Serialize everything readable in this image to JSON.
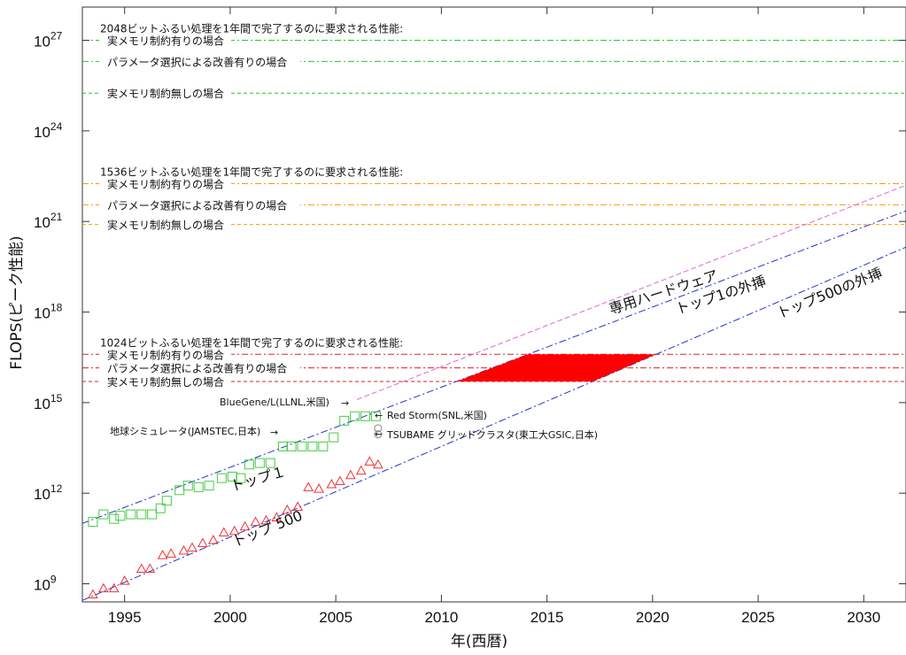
{
  "chart_data": {
    "type": "scatter",
    "xlabel": "年(西暦)",
    "ylabel": "FLOPS(ピーク性能)",
    "xlim": [
      1993,
      2032
    ],
    "ylim_log10": [
      8.4,
      28.1
    ],
    "x_ticks": [
      "1995",
      "2000",
      "2005",
      "2010",
      "2015",
      "2020",
      "2025",
      "2030"
    ],
    "y_ticks": [
      {
        "base": "10",
        "exp": "9"
      },
      {
        "base": "10",
        "exp": "12"
      },
      {
        "base": "10",
        "exp": "15"
      },
      {
        "base": "10",
        "exp": "18"
      },
      {
        "base": "10",
        "exp": "21"
      },
      {
        "base": "10",
        "exp": "24"
      },
      {
        "base": "10",
        "exp": "27"
      }
    ],
    "y_tick_log": [
      9,
      12,
      15,
      18,
      21,
      24,
      27
    ],
    "thresholds": [
      {
        "title": "2048ビットふるい処理を1年間で完了するのに要求される性能:",
        "color": "#22cc22",
        "lines": [
          {
            "label": "実メモリ制約有りの場合",
            "log10": 27.0,
            "dash": "dashdot"
          },
          {
            "label": "パラメータ選択による改善有りの場合",
            "log10": 26.3,
            "dash": "dashdot"
          },
          {
            "label": "実メモリ制約無しの場合",
            "log10": 25.25,
            "dash": "dash"
          }
        ]
      },
      {
        "title": "1536ビットふるい処理を1年間で完了するのに要求される性能:",
        "color": "#ff9900",
        "lines": [
          {
            "label": "実メモリ制約有りの場合",
            "log10": 22.25,
            "dash": "dashdot"
          },
          {
            "label": "パラメータ選択による改善有りの場合",
            "log10": 21.55,
            "dash": "dashdot"
          },
          {
            "label": "実メモリ制約無しの場合",
            "log10": 20.9,
            "dash": "dash"
          }
        ]
      },
      {
        "title": "1024ビットふるい処理を1年間で完了するのに要求される性能:",
        "color": "#dd2222",
        "lines": [
          {
            "label": "実メモリ制約有りの場合",
            "log10": 16.6,
            "dash": "dashdot"
          },
          {
            "label": "パラメータ選択による改善有りの場合",
            "log10": 16.15,
            "dash": "dashdot"
          },
          {
            "label": "実メモリ制約無しの場合",
            "log10": 15.7,
            "dash": "dash"
          }
        ]
      }
    ],
    "top1": {
      "label": "トップ１",
      "color": "#44cc44",
      "points": [
        [
          1993.5,
          11.05
        ],
        [
          1994.0,
          11.3
        ],
        [
          1994.5,
          11.15
        ],
        [
          1994.8,
          11.25
        ],
        [
          1995.3,
          11.3
        ],
        [
          1995.8,
          11.3
        ],
        [
          1996.3,
          11.3
        ],
        [
          1996.7,
          11.5
        ],
        [
          1997.0,
          11.75
        ],
        [
          1997.6,
          12.1
        ],
        [
          1998.0,
          12.25
        ],
        [
          1998.5,
          12.2
        ],
        [
          1999.0,
          12.25
        ],
        [
          1999.6,
          12.5
        ],
        [
          2000.1,
          12.55
        ],
        [
          2000.5,
          12.5
        ],
        [
          2000.9,
          12.95
        ],
        [
          2001.4,
          13.0
        ],
        [
          2001.9,
          13.0
        ],
        [
          2002.5,
          13.55
        ],
        [
          2002.9,
          13.55
        ],
        [
          2003.4,
          13.55
        ],
        [
          2003.9,
          13.55
        ],
        [
          2004.4,
          13.55
        ],
        [
          2004.9,
          13.85
        ],
        [
          2005.4,
          14.4
        ],
        [
          2005.9,
          14.55
        ],
        [
          2006.4,
          14.55
        ],
        [
          2006.9,
          14.55
        ]
      ]
    },
    "top500": {
      "label": "トップ 500",
      "color": "#ee3333",
      "points": [
        [
          1993.5,
          8.65
        ],
        [
          1994.0,
          8.85
        ],
        [
          1994.5,
          8.85
        ],
        [
          1995.0,
          9.1
        ],
        [
          1995.8,
          9.5
        ],
        [
          1996.2,
          9.5
        ],
        [
          1996.8,
          9.95
        ],
        [
          1997.2,
          10.0
        ],
        [
          1997.8,
          10.1
        ],
        [
          1998.2,
          10.2
        ],
        [
          1998.7,
          10.35
        ],
        [
          1999.2,
          10.45
        ],
        [
          1999.7,
          10.7
        ],
        [
          2000.2,
          10.75
        ],
        [
          2000.7,
          10.9
        ],
        [
          2001.2,
          11.05
        ],
        [
          2001.7,
          11.1
        ],
        [
          2002.2,
          11.2
        ],
        [
          2002.7,
          11.45
        ],
        [
          2003.2,
          11.55
        ],
        [
          2003.7,
          12.2
        ],
        [
          2004.2,
          12.15
        ],
        [
          2004.8,
          12.3
        ],
        [
          2005.2,
          12.4
        ],
        [
          2005.7,
          12.6
        ],
        [
          2006.2,
          12.75
        ],
        [
          2006.6,
          13.05
        ],
        [
          2007.0,
          12.95
        ]
      ]
    },
    "extrap_top1": {
      "label": "トップ1の外挿",
      "x": [
        1993,
        2032
      ],
      "log10": [
        11.0,
        21.35
      ]
    },
    "extrap_top500": {
      "label": "トップ500の外挿",
      "x": [
        1993,
        2032
      ],
      "log10": [
        8.45,
        20.15
      ]
    },
    "special_hw": {
      "label": "専用ハードウェア",
      "x": [
        2006,
        2032
      ],
      "log10": [
        15.1,
        22.2
      ]
    },
    "named_systems": [
      {
        "label": "BlueGene/L(LLNL,米国)",
        "x": 2006.8,
        "log10": 14.55
      },
      {
        "label": "Red Storm(SNL,米国)",
        "x": 2007.0,
        "log10": 14.15
      },
      {
        "label": "TSUBAME グリッドクラスタ(東工大GSIC,日本)",
        "x": 2007.0,
        "log10": 13.95
      },
      {
        "label": "地球シミュレータ(JAMSTEC,日本)",
        "x": 2002.5,
        "log10": 13.55
      }
    ]
  }
}
